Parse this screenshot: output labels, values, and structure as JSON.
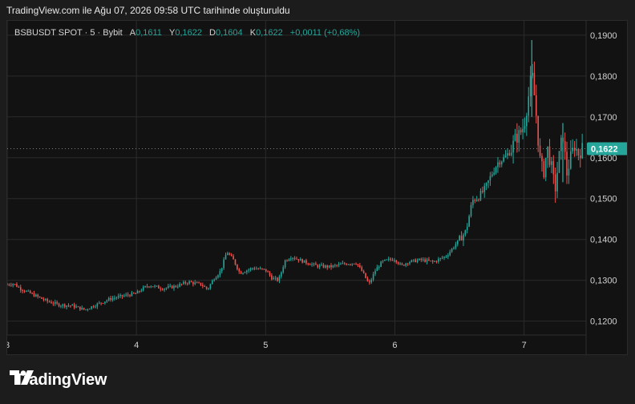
{
  "caption": "TradingView.com ile Ağu 07, 2026 09:58 UTC tarihinde oluşturuldu",
  "legend": {
    "symbol": "BSBUSDT SPOT · 5 · Bybit",
    "open_label": "A",
    "open": "0,1611",
    "high_label": "Y",
    "high": "0,1622",
    "low_label": "D",
    "low": "0,1604",
    "close_label": "K",
    "close": "0,1622",
    "change": "+0,0011 (+0,68%)"
  },
  "brand": {
    "name": "TradingView",
    "logo_icon": "tradingview-logo-icon"
  },
  "colors": {
    "up": "#26a69a",
    "down": "#ef5350",
    "background": "#121212",
    "grid": "#2b2b2b",
    "last_price_label_bg": "#26a69a"
  },
  "chart_data": {
    "type": "candlestick",
    "x_ticks": [
      "3",
      "4",
      "5",
      "6",
      "7"
    ],
    "y_ticks": [
      "0,1200",
      "0,1300",
      "0,1400",
      "0,1500",
      "0,1600",
      "0,1700",
      "0,1800",
      "0,1900"
    ],
    "y_tick_values": [
      0.12,
      0.13,
      0.14,
      0.15,
      0.16,
      0.17,
      0.18,
      0.19
    ],
    "ylim": [
      0.1166,
      0.1935
    ],
    "xlim": [
      3,
      7.48
    ],
    "last_price": 0.1622,
    "last_price_label": "0,1622",
    "grid": true,
    "series": [
      {
        "x": 3.0,
        "y": 0.129
      },
      {
        "x": 3.05,
        "y": 0.1292
      },
      {
        "x": 3.1,
        "y": 0.128
      },
      {
        "x": 3.2,
        "y": 0.1265
      },
      {
        "x": 3.3,
        "y": 0.125
      },
      {
        "x": 3.4,
        "y": 0.124
      },
      {
        "x": 3.5,
        "y": 0.1238
      },
      {
        "x": 3.6,
        "y": 0.1228
      },
      {
        "x": 3.7,
        "y": 0.1242
      },
      {
        "x": 3.8,
        "y": 0.1255
      },
      {
        "x": 3.9,
        "y": 0.1262
      },
      {
        "x": 4.0,
        "y": 0.1268
      },
      {
        "x": 4.05,
        "y": 0.128
      },
      {
        "x": 4.1,
        "y": 0.1288
      },
      {
        "x": 4.2,
        "y": 0.128
      },
      {
        "x": 4.3,
        "y": 0.1285
      },
      {
        "x": 4.4,
        "y": 0.1296
      },
      {
        "x": 4.5,
        "y": 0.129
      },
      {
        "x": 4.55,
        "y": 0.1278
      },
      {
        "x": 4.6,
        "y": 0.1305
      },
      {
        "x": 4.65,
        "y": 0.1322
      },
      {
        "x": 4.7,
        "y": 0.137
      },
      {
        "x": 4.75,
        "y": 0.135
      },
      {
        "x": 4.8,
        "y": 0.1318
      },
      {
        "x": 4.9,
        "y": 0.133
      },
      {
        "x": 5.0,
        "y": 0.1325
      },
      {
        "x": 5.05,
        "y": 0.1305
      },
      {
        "x": 5.1,
        "y": 0.13
      },
      {
        "x": 5.15,
        "y": 0.1348
      },
      {
        "x": 5.2,
        "y": 0.1358
      },
      {
        "x": 5.3,
        "y": 0.1345
      },
      {
        "x": 5.4,
        "y": 0.1335
      },
      {
        "x": 5.5,
        "y": 0.1333
      },
      {
        "x": 5.6,
        "y": 0.134
      },
      {
        "x": 5.7,
        "y": 0.1343
      },
      {
        "x": 5.75,
        "y": 0.132
      },
      {
        "x": 5.8,
        "y": 0.129
      },
      {
        "x": 5.85,
        "y": 0.1325
      },
      {
        "x": 5.9,
        "y": 0.1345
      },
      {
        "x": 5.95,
        "y": 0.135
      },
      {
        "x": 6.0,
        "y": 0.1352
      },
      {
        "x": 6.05,
        "y": 0.1335
      },
      {
        "x": 6.1,
        "y": 0.1345
      },
      {
        "x": 6.2,
        "y": 0.135
      },
      {
        "x": 6.3,
        "y": 0.1345
      },
      {
        "x": 6.4,
        "y": 0.136
      },
      {
        "x": 6.5,
        "y": 0.14
      },
      {
        "x": 6.55,
        "y": 0.142
      },
      {
        "x": 6.6,
        "y": 0.1495
      },
      {
        "x": 6.65,
        "y": 0.1505
      },
      {
        "x": 6.7,
        "y": 0.1525
      },
      {
        "x": 6.75,
        "y": 0.156
      },
      {
        "x": 6.8,
        "y": 0.159
      },
      {
        "x": 6.85,
        "y": 0.16
      },
      {
        "x": 6.9,
        "y": 0.162
      },
      {
        "x": 6.93,
        "y": 0.1645
      },
      {
        "x": 6.97,
        "y": 0.166
      },
      {
        "x": 7.0,
        "y": 0.168
      },
      {
        "x": 7.03,
        "y": 0.174
      },
      {
        "x": 7.06,
        "y": 0.181
      },
      {
        "x": 7.09,
        "y": 0.172
      },
      {
        "x": 7.12,
        "y": 0.16
      },
      {
        "x": 7.15,
        "y": 0.156
      },
      {
        "x": 7.18,
        "y": 0.1625
      },
      {
        "x": 7.21,
        "y": 0.158
      },
      {
        "x": 7.24,
        "y": 0.152
      },
      {
        "x": 7.27,
        "y": 0.16
      },
      {
        "x": 7.3,
        "y": 0.166
      },
      {
        "x": 7.33,
        "y": 0.156
      },
      {
        "x": 7.36,
        "y": 0.16
      },
      {
        "x": 7.39,
        "y": 0.163
      },
      {
        "x": 7.42,
        "y": 0.161
      },
      {
        "x": 7.45,
        "y": 0.1622
      }
    ],
    "spikes": [
      {
        "x": 7.06,
        "high": 0.1888,
        "low": 0.17
      },
      {
        "x": 7.3,
        "high": 0.1685,
        "low": 0.154
      }
    ]
  }
}
